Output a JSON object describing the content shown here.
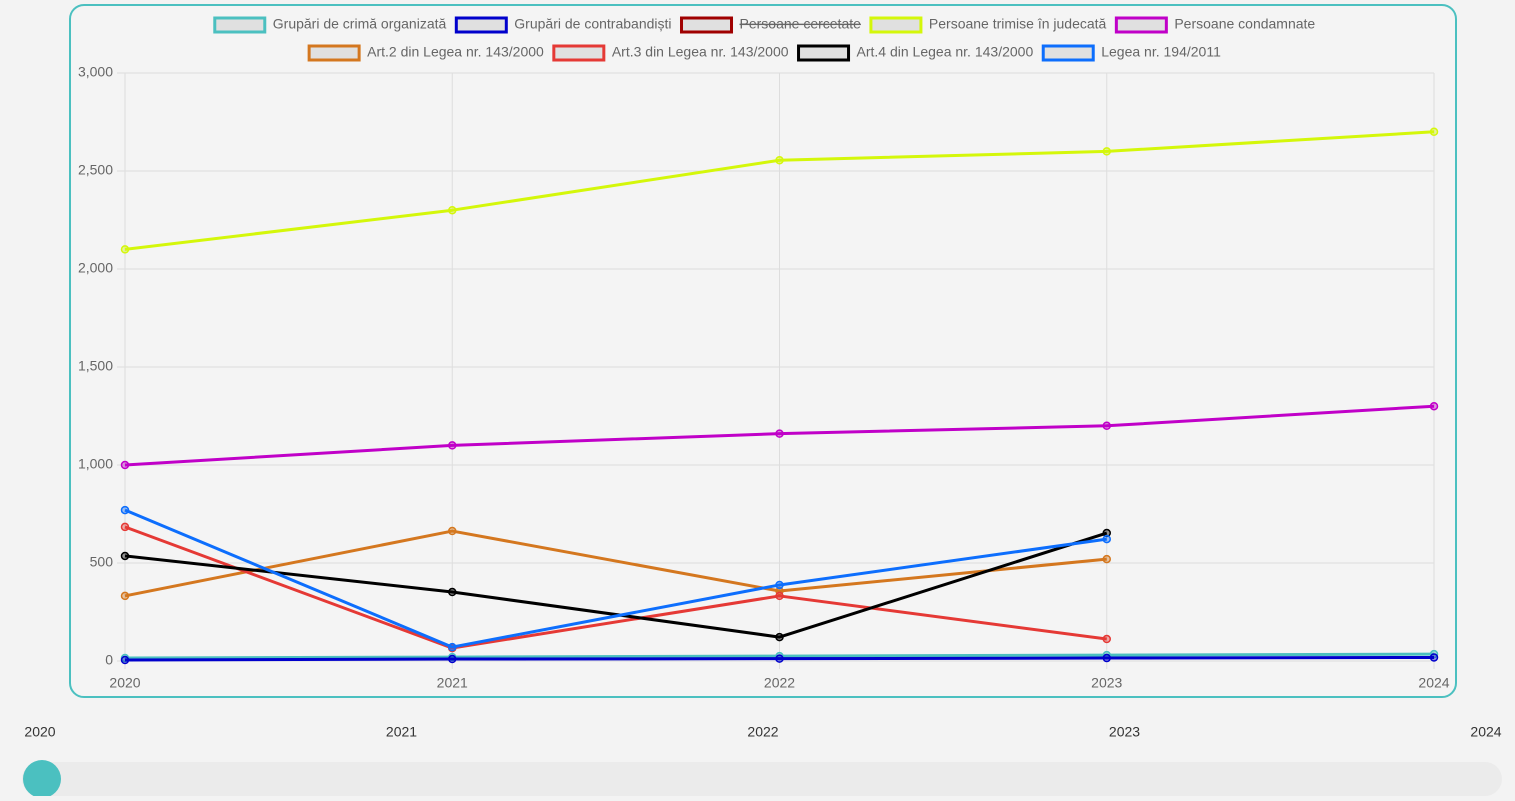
{
  "chart_data": {
    "type": "line",
    "x": [
      2020,
      2021,
      2022,
      2023,
      2024
    ],
    "xlim": [
      2020,
      2024
    ],
    "xticks": [
      2020,
      2021,
      2022,
      2023,
      2024
    ],
    "ylim": [
      0,
      3000
    ],
    "yticks": [
      0,
      500,
      {
        "value": 1000,
        "label": "1,000"
      },
      {
        "value": 1500,
        "label": "1,500"
      },
      {
        "value": 2000,
        "label": "2,000"
      },
      {
        "value": 2500,
        "label": "2,500"
      },
      {
        "value": 3000,
        "label": "3,000"
      }
    ],
    "grid": true,
    "legend": "top",
    "series": [
      {
        "name": "Grupări de crimă organizată",
        "color": "#4bc0c0",
        "values": [
          15,
          20,
          25,
          30,
          35
        ]
      },
      {
        "name": "Grupări de contrabandiști",
        "color": "#0000cc",
        "values": [
          5,
          10,
          12,
          15,
          18
        ]
      },
      {
        "name": "Persoane cercetate",
        "color": "#a00000",
        "hidden": true,
        "values": [
          null,
          null,
          null,
          null,
          null
        ]
      },
      {
        "name": "Persoane trimise în judecată",
        "color": "#d4f70a",
        "values": [
          2100,
          2300,
          2555,
          2600,
          2700
        ]
      },
      {
        "name": "Persoane condamnate",
        "color": "#c000c8",
        "values": [
          1000,
          1100,
          1160,
          1200,
          1300
        ]
      },
      {
        "name": "Art.2 din Legea nr. 143/2000",
        "color": "#d4771f",
        "values": [
          332,
          663,
          357,
          520,
          null
        ]
      },
      {
        "name": "Art.3 din Legea nr. 143/2000",
        "color": "#e53935",
        "values": [
          684,
          66,
          332,
          112,
          null
        ]
      },
      {
        "name": "Art.4 din Legea nr. 143/2000",
        "color": "#000000",
        "values": [
          536,
          352,
          122,
          653,
          null
        ]
      },
      {
        "name": "Legea nr. 194/2011",
        "color": "#0d6efd",
        "values": [
          770,
          71,
          388,
          622,
          null
        ]
      }
    ]
  },
  "slider": {
    "ticks": [
      2020,
      2021,
      2022,
      2023,
      2024
    ]
  }
}
